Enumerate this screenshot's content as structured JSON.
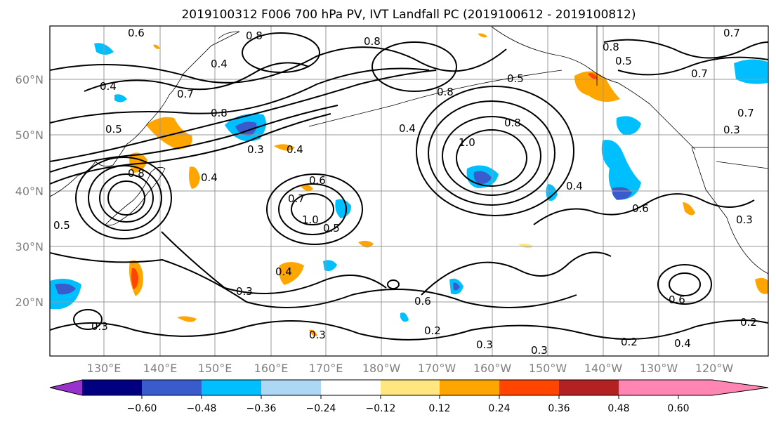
{
  "title": "2019100312 F006 700 hPa PV, IVT Landfall PC (2019100612 - 2019100812)",
  "lat_labels": [
    "60°N",
    "50°N",
    "40°N",
    "30°N",
    "20°N"
  ],
  "lon_labels": [
    "130°E",
    "140°E",
    "150°E",
    "160°E",
    "170°E",
    "180°W",
    "170°W",
    "160°W",
    "150°W",
    "140°W",
    "130°W",
    "120°W"
  ],
  "colorbar": {
    "tick_labels": [
      "−0.60",
      "−0.48",
      "−0.36",
      "−0.24",
      "−0.12",
      "0.12",
      "0.24",
      "0.36",
      "0.48",
      "0.60"
    ],
    "colors": [
      "#9932cc",
      "#000080",
      "#3a5bcc",
      "#00bfff",
      "#add8f5",
      "#ffffff",
      "#ffe680",
      "#ffa500",
      "#ff4500",
      "#b22222",
      "#ff85b3"
    ]
  },
  "contour_labels": [
    "0.6",
    "0.8",
    "0.4",
    "0.4",
    "0.7",
    "0.5",
    "0.8",
    "0.3",
    "0.4",
    "0.4",
    "0.8",
    "0.8",
    "0.4",
    "0.8",
    "0.5",
    "1.0",
    "0.8",
    "0.4",
    "0.6",
    "0.5",
    "0.7",
    "0.6",
    "1.0",
    "0.5",
    "0.4",
    "0.3",
    "0.3",
    "0.3",
    "0.2",
    "0.3",
    "0.3",
    "0.2",
    "0.4",
    "0.2",
    "0.6",
    "0.6",
    "0.3",
    "0.7",
    "0.5",
    "0.8",
    "0.7",
    "0.7",
    "0.3"
  ]
}
